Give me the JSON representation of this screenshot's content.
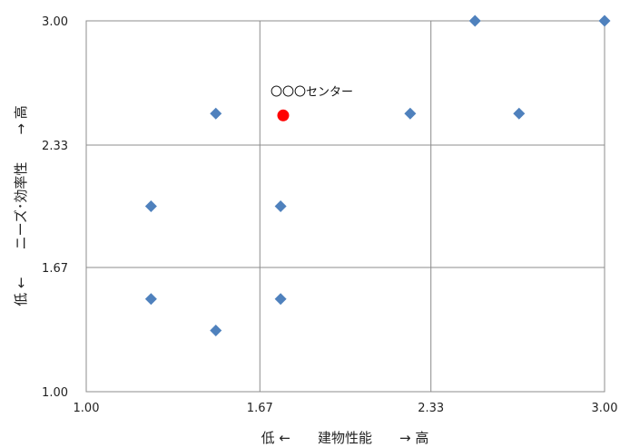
{
  "chart_data": {
    "type": "scatter",
    "title": "",
    "xlabel": "低 ←　　建物性能　　→ 高",
    "ylabel": "低 ←　　ニーズ･効率性　　→ 高",
    "xlim": [
      1.0,
      3.0
    ],
    "ylim": [
      1.0,
      3.0
    ],
    "xticks": [
      1.0,
      1.67,
      2.33,
      3.0
    ],
    "yticks": [
      1.0,
      1.67,
      2.33,
      3.0
    ],
    "xtick_labels": [
      "1.00",
      "1.67",
      "2.33",
      "3.00"
    ],
    "ytick_labels": [
      "1.00",
      "1.67",
      "2.33",
      "3.00"
    ],
    "grid": true,
    "legend": "none",
    "series": [
      {
        "marker": "diamond",
        "color": "#4f81bd",
        "points": [
          {
            "x": 2.5,
            "y": 3.0
          },
          {
            "x": 3.0,
            "y": 3.0
          },
          {
            "x": 1.5,
            "y": 2.5
          },
          {
            "x": 2.25,
            "y": 2.5
          },
          {
            "x": 2.67,
            "y": 2.5
          },
          {
            "x": 1.25,
            "y": 2.0
          },
          {
            "x": 1.75,
            "y": 2.0
          },
          {
            "x": 1.25,
            "y": 1.5
          },
          {
            "x": 1.75,
            "y": 1.5
          },
          {
            "x": 1.5,
            "y": 1.33
          }
        ]
      },
      {
        "marker": "circle",
        "color": "#ff0000",
        "points": [
          {
            "x": 1.76,
            "y": 2.49
          }
        ]
      }
    ],
    "annotations": [
      {
        "text": "〇〇〇センター",
        "x": 1.76,
        "y": 2.49
      }
    ]
  }
}
